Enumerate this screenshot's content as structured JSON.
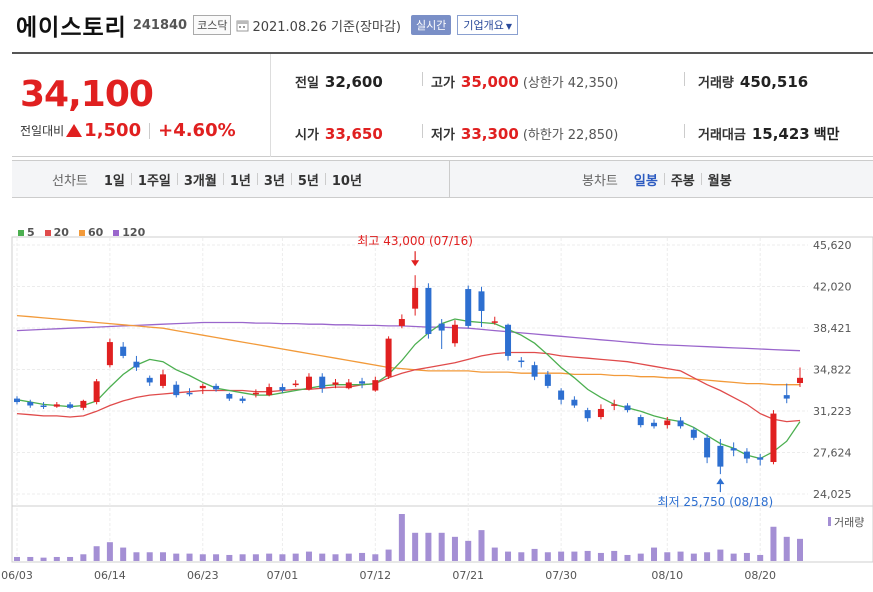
{
  "header": {
    "name": "에이스토리",
    "code": "241840",
    "market": "코스닥",
    "date": "2021.08.26 기준(장마감)",
    "realtime_label": "실시간",
    "overview_label": "기업개요"
  },
  "price": {
    "current": "34,100",
    "change_label": "전일대비",
    "change": "1,500",
    "change_pct": "+4.60%",
    "change_color": "#e02020",
    "prev_label": "전일",
    "prev": "32,600",
    "high_label": "고가",
    "high": "35,000",
    "upper_limit_label": "(상한가",
    "upper_limit": "42,350)",
    "volume_label": "거래량",
    "volume": "450,516",
    "open_label": "시가",
    "open": "33,650",
    "low_label": "저가",
    "low": "33,300",
    "lower_limit_label": "(하한가",
    "lower_limit": "22,850)",
    "amount_label": "거래대금",
    "amount": "15,423",
    "amount_unit": "백만"
  },
  "toolbar": {
    "line_label": "선차트",
    "line_ranges": [
      "1일",
      "1주일",
      "3개월",
      "1년",
      "3년",
      "5년",
      "10년"
    ],
    "candle_label": "봉차트",
    "candle_ranges": [
      "일봉",
      "주봉",
      "월봉"
    ],
    "candle_selected": 0
  },
  "chart_data": {
    "type": "candlestick",
    "legend": [
      {
        "name": "5",
        "color": "#4caf50"
      },
      {
        "name": "20",
        "color": "#e04b4b"
      },
      {
        "name": "60",
        "color": "#f29a3a"
      },
      {
        "name": "120",
        "color": "#9a66cc"
      }
    ],
    "y_ticks": [
      "45,620",
      "42,020",
      "38,421",
      "34,822",
      "31,223",
      "27,624",
      "24,025"
    ],
    "y_tick_values": [
      45620,
      42020,
      38421,
      34822,
      31223,
      27624,
      24025
    ],
    "ylim": [
      24025,
      45620
    ],
    "x_ticks": [
      "06/03",
      "06/14",
      "06/23",
      "07/01",
      "07/12",
      "07/21",
      "07/30",
      "08/10",
      "08/20"
    ],
    "x_tick_index": [
      0,
      7,
      14,
      20,
      27,
      34,
      41,
      49,
      56
    ],
    "up_color": "#e02020",
    "down_color": "#2d6fd0",
    "volume_color": "#a48fd4",
    "volume_label": "거래량",
    "max_annotation": {
      "text": "최고 43,000 (07/16)",
      "index": 30,
      "value": 43000,
      "color": "#e02020"
    },
    "min_annotation": {
      "text": "최저 25,750 (08/18)",
      "index": 53,
      "value": 25750,
      "color": "#2d6fd0"
    },
    "ohlc": [
      [
        32300,
        32500,
        31800,
        32000
      ],
      [
        32000,
        32200,
        31500,
        31700
      ],
      [
        31700,
        32000,
        31400,
        31600
      ],
      [
        31600,
        32000,
        31500,
        31800
      ],
      [
        31800,
        32000,
        31400,
        31500
      ],
      [
        31500,
        32200,
        31300,
        32100
      ],
      [
        32000,
        34000,
        31800,
        33800
      ],
      [
        35200,
        37500,
        35000,
        37200
      ],
      [
        36800,
        37200,
        35800,
        36000
      ],
      [
        35500,
        36000,
        34700,
        35000
      ],
      [
        34100,
        34300,
        33400,
        33700
      ],
      [
        33400,
        34800,
        33200,
        34400
      ],
      [
        33500,
        33800,
        32400,
        32600
      ],
      [
        32800,
        33200,
        32500,
        32700
      ],
      [
        33200,
        33600,
        32700,
        33400
      ],
      [
        33400,
        33600,
        32900,
        33100
      ],
      [
        32700,
        32800,
        32100,
        32300
      ],
      [
        32300,
        32500,
        31900,
        32100
      ],
      [
        32800,
        33100,
        32400,
        32800
      ],
      [
        32600,
        33600,
        32500,
        33300
      ],
      [
        33300,
        33600,
        32800,
        33000
      ],
      [
        33500,
        33900,
        33300,
        33600
      ],
      [
        33100,
        34500,
        33000,
        34200
      ],
      [
        34200,
        34500,
        32800,
        33200
      ],
      [
        33500,
        34000,
        33200,
        33700
      ],
      [
        33200,
        34000,
        33100,
        33700
      ],
      [
        33800,
        34100,
        33200,
        33600
      ],
      [
        33000,
        34200,
        32900,
        33900
      ],
      [
        34200,
        37700,
        34000,
        37500
      ],
      [
        38600,
        39600,
        38400,
        39200
      ],
      [
        40100,
        43000,
        39500,
        41900
      ],
      [
        41900,
        42300,
        37500,
        37900
      ],
      [
        38800,
        39200,
        36600,
        38200
      ],
      [
        37100,
        39100,
        36800,
        38700
      ],
      [
        41800,
        42100,
        38400,
        38600
      ],
      [
        41600,
        42000,
        38500,
        39900
      ],
      [
        39000,
        39400,
        38700,
        39000
      ],
      [
        38700,
        38800,
        35600,
        36000
      ],
      [
        35600,
        35900,
        35000,
        35500
      ],
      [
        35200,
        35500,
        33900,
        34200
      ],
      [
        34400,
        34700,
        33200,
        33400
      ],
      [
        33000,
        33200,
        31800,
        32200
      ],
      [
        32200,
        32500,
        31500,
        31700
      ],
      [
        31300,
        31500,
        30300,
        30600
      ],
      [
        30700,
        31800,
        30500,
        31400
      ],
      [
        31700,
        32200,
        31300,
        31800
      ],
      [
        31700,
        31900,
        31100,
        31300
      ],
      [
        30700,
        30900,
        29800,
        30000
      ],
      [
        30200,
        30500,
        29700,
        29900
      ],
      [
        30000,
        30700,
        29700,
        30400
      ],
      [
        30400,
        30700,
        29700,
        29900
      ],
      [
        29600,
        29800,
        28700,
        28900
      ],
      [
        28900,
        29200,
        26700,
        27200
      ],
      [
        28200,
        28800,
        25750,
        26400
      ],
      [
        28000,
        28500,
        27300,
        27800
      ],
      [
        27700,
        28000,
        26700,
        27100
      ],
      [
        27200,
        27500,
        26500,
        27000
      ],
      [
        26800,
        31300,
        26600,
        31000
      ],
      [
        32600,
        33600,
        31900,
        32300
      ],
      [
        33650,
        35000,
        33300,
        34100
      ]
    ],
    "ma5": [
      32200,
      32000,
      31800,
      31700,
      31600,
      31700,
      32100,
      33300,
      34400,
      35200,
      35700,
      35500,
      34800,
      34300,
      33700,
      33200,
      33000,
      32800,
      32600,
      32600,
      32800,
      33000,
      33200,
      33400,
      33500,
      33500,
      33500,
      33600,
      34400,
      35600,
      37000,
      38000,
      38800,
      39200,
      39000,
      38900,
      38800,
      38300,
      37800,
      37100,
      36100,
      35000,
      34100,
      33100,
      32400,
      31800,
      31500,
      31200,
      30800,
      30500,
      30300,
      29800,
      29100,
      28400,
      28000,
      27400,
      27100,
      27700,
      28600,
      30300
    ],
    "ma20": [
      31000,
      30900,
      30800,
      30800,
      30700,
      30800,
      31200,
      31700,
      32100,
      32400,
      32600,
      32700,
      32800,
      32900,
      33000,
      33000,
      33000,
      33000,
      32900,
      32900,
      33000,
      33100,
      33100,
      33200,
      33300,
      33300,
      33500,
      33600,
      34100,
      34500,
      34800,
      35000,
      35200,
      35400,
      35700,
      36000,
      36200,
      36300,
      36300,
      36300,
      36200,
      36000,
      35900,
      35800,
      35700,
      35600,
      35500,
      35300,
      35100,
      34900,
      34700,
      34100,
      33500,
      33000,
      32400,
      31800,
      31000,
      30500,
      30300,
      30400
    ],
    "ma60": [
      39500,
      39400,
      39300,
      39200,
      39100,
      39000,
      38900,
      38800,
      38700,
      38600,
      38500,
      38400,
      38200,
      38000,
      37800,
      37600,
      37400,
      37200,
      37000,
      36800,
      36600,
      36400,
      36200,
      36000,
      35800,
      35600,
      35400,
      35200,
      35000,
      34900,
      34800,
      34700,
      34700,
      34700,
      34700,
      34600,
      34600,
      34600,
      34500,
      34500,
      34500,
      34500,
      34400,
      34400,
      34400,
      34300,
      34300,
      34200,
      34200,
      34100,
      34100,
      34000,
      33900,
      33800,
      33700,
      33600,
      33600,
      33500,
      33500,
      33500
    ],
    "ma120": [
      38200,
      38250,
      38300,
      38350,
      38400,
      38450,
      38500,
      38550,
      38600,
      38650,
      38700,
      38750,
      38800,
      38850,
      38900,
      38900,
      38900,
      38900,
      38850,
      38850,
      38800,
      38800,
      38750,
      38750,
      38700,
      38700,
      38650,
      38650,
      38600,
      38600,
      38550,
      38500,
      38500,
      38450,
      38400,
      38300,
      38200,
      38100,
      38000,
      37900,
      37800,
      37700,
      37600,
      37500,
      37400,
      37300,
      37200,
      37100,
      37000,
      36950,
      36900,
      36850,
      36800,
      36750,
      36700,
      36650,
      36600,
      36550,
      36500,
      36450
    ],
    "volume": [
      6,
      6,
      5,
      6,
      6,
      10,
      22,
      28,
      20,
      13,
      13,
      13,
      11,
      11,
      10,
      10,
      9,
      10,
      10,
      11,
      10,
      11,
      14,
      11,
      10,
      11,
      12,
      10,
      17,
      70,
      42,
      42,
      42,
      36,
      30,
      46,
      20,
      14,
      13,
      18,
      13,
      14,
      14,
      15,
      12,
      15,
      9,
      11,
      20,
      13,
      14,
      11,
      13,
      17,
      11,
      12,
      9,
      51,
      36,
      33
    ]
  }
}
